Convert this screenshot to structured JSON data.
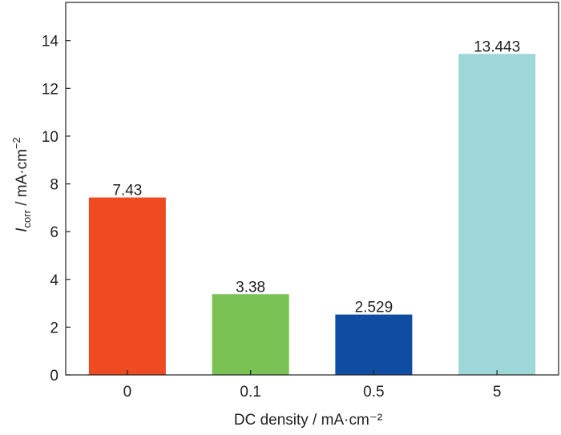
{
  "chart_data": {
    "type": "bar",
    "categories": [
      "0",
      "0.1",
      "0.5",
      "5"
    ],
    "values": [
      7.43,
      3.38,
      2.529,
      13.443
    ],
    "data_labels": [
      "7.43",
      "3.38",
      "2.529",
      "13.443"
    ],
    "bar_colors": [
      "#ee4b23",
      "#78c152",
      "#0e4da1",
      "#9dd7d8"
    ],
    "ylim": [
      0,
      15.6
    ],
    "yticks": [
      0,
      2,
      4,
      6,
      8,
      10,
      12,
      14
    ],
    "xlabel": "DC density / mA·cm⁻²",
    "ylabel": {
      "symbol": "I",
      "subscript": "corr",
      "rest": " / mA·cm",
      "superscript": "−2"
    },
    "grid": false,
    "legend": "none"
  }
}
